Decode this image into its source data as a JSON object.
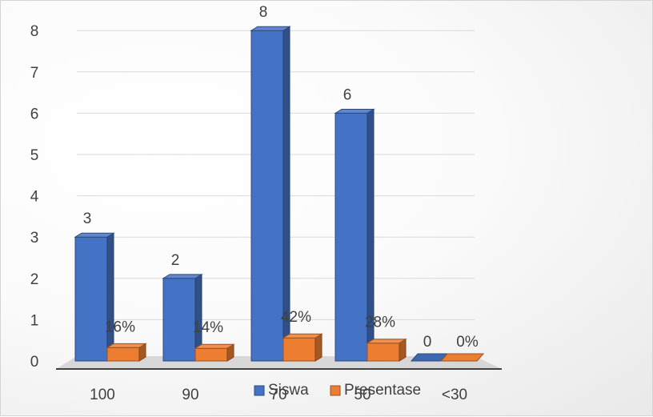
{
  "chart_data": {
    "type": "bar",
    "categories": [
      "100",
      "90",
      "70",
      "50",
      "<30"
    ],
    "series": [
      {
        "name": "Siswa",
        "values": [
          3,
          2,
          8,
          6,
          0
        ],
        "labels": [
          "3",
          "2",
          "8",
          "6",
          "0"
        ],
        "color": "#4472c4"
      },
      {
        "name": "Presentase",
        "values": [
          0.16,
          0.14,
          0.42,
          0.28,
          0
        ],
        "labels": [
          "16%",
          "14%",
          "42%",
          "28%",
          "0%"
        ],
        "color": "#ed7d31"
      }
    ],
    "yticks": [
      "0",
      "1",
      "2",
      "3",
      "4",
      "5",
      "6",
      "7",
      "8"
    ],
    "ylim": [
      0,
      8
    ],
    "title": "",
    "xlabel": "",
    "ylabel": "",
    "grid": true,
    "legend_position": "bottom",
    "style": "3d-clustered-column"
  }
}
